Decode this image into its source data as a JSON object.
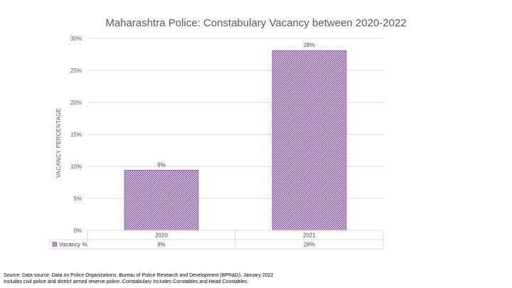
{
  "chart_data": {
    "type": "bar",
    "title": "Maharashtra Police: Constabulary Vacancy between 2020-2022",
    "ylabel": "VACANCY PERCENTAGE",
    "xlabel": "",
    "categories": [
      "2020",
      "2021"
    ],
    "series": [
      {
        "name": "Vacancy %",
        "values": [
          9.4,
          28.1
        ],
        "labels": [
          "9%",
          "28%"
        ]
      }
    ],
    "ylim": [
      0,
      30
    ],
    "yticks": [
      0,
      5,
      10,
      15,
      20,
      25,
      30
    ],
    "ytick_labels": [
      "0%",
      "5%",
      "10%",
      "15%",
      "20%",
      "25%",
      "30%"
    ],
    "grid": true,
    "legend": "data-table",
    "bar_color": "#7030a0"
  },
  "footer": {
    "line1": "Source: Data source: Data on Police Organizations, Bureau of Police Research and Development (BPR&D), January 2022",
    "line2": "Includes civil police and district armed reserve police. Constabulary Includes Constables and Head Constables."
  }
}
